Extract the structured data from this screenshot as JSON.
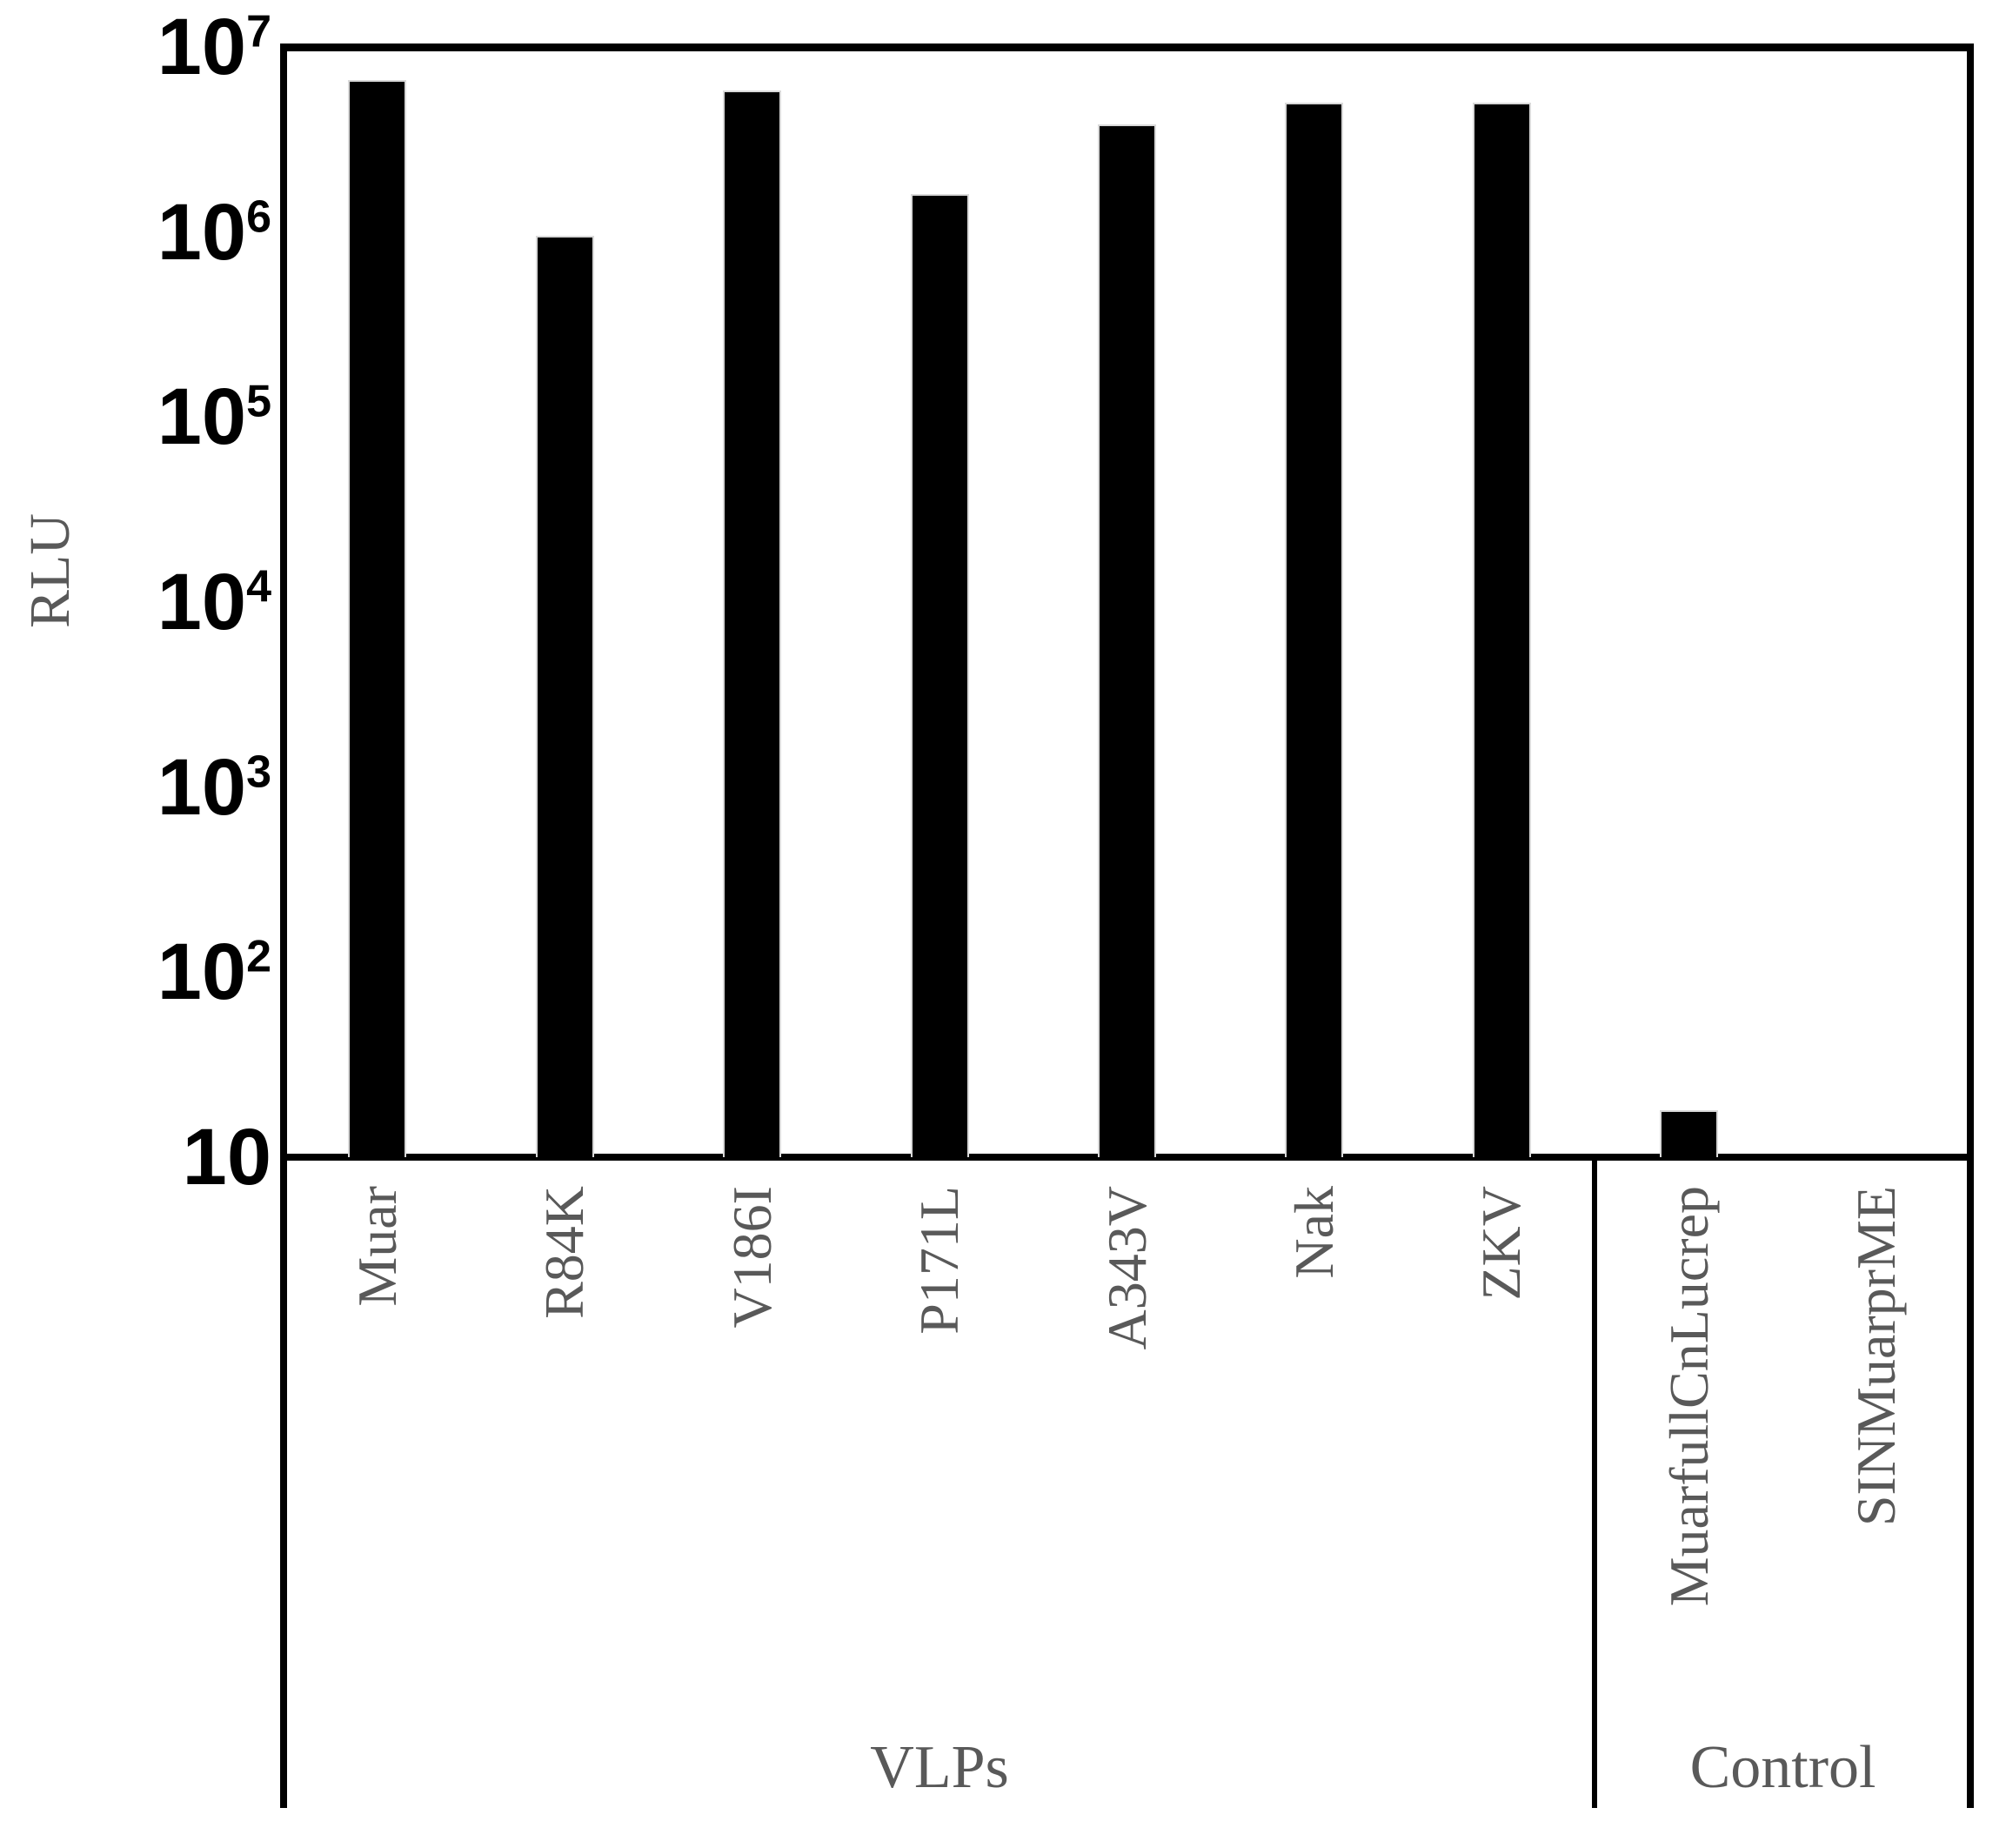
{
  "chart_data": {
    "type": "bar",
    "title": "",
    "ylabel": "RLU",
    "y_scale": "log10",
    "y_min_exp": 1,
    "y_max_exp": 7,
    "grid": false,
    "legend": false,
    "y_ticks": [
      {
        "base": "10",
        "exp": "7"
      },
      {
        "base": "10",
        "exp": "6"
      },
      {
        "base": "10",
        "exp": "5"
      },
      {
        "base": "10",
        "exp": "4"
      },
      {
        "base": "10",
        "exp": "3"
      },
      {
        "base": "10",
        "exp": "2"
      },
      {
        "base": "10",
        "exp": ""
      }
    ],
    "categories": [
      "Muar",
      "R84K",
      "V186I",
      "P171L",
      "A343V",
      "Nak",
      "ZKV",
      "MuarfullCnLucrep",
      "SINMuarprME"
    ],
    "values": [
      6600000,
      950000,
      5800000,
      1600000,
      3800000,
      5000000,
      5000000,
      18,
      null
    ],
    "groups": [
      {
        "label": "VLPs",
        "start": 0,
        "end": 6
      },
      {
        "label": "Control",
        "start": 7,
        "end": 8
      }
    ],
    "bar_color": "#000000",
    "axis_color": "#000000",
    "tick_label_color": "#000000",
    "category_label_color": "#595959"
  }
}
